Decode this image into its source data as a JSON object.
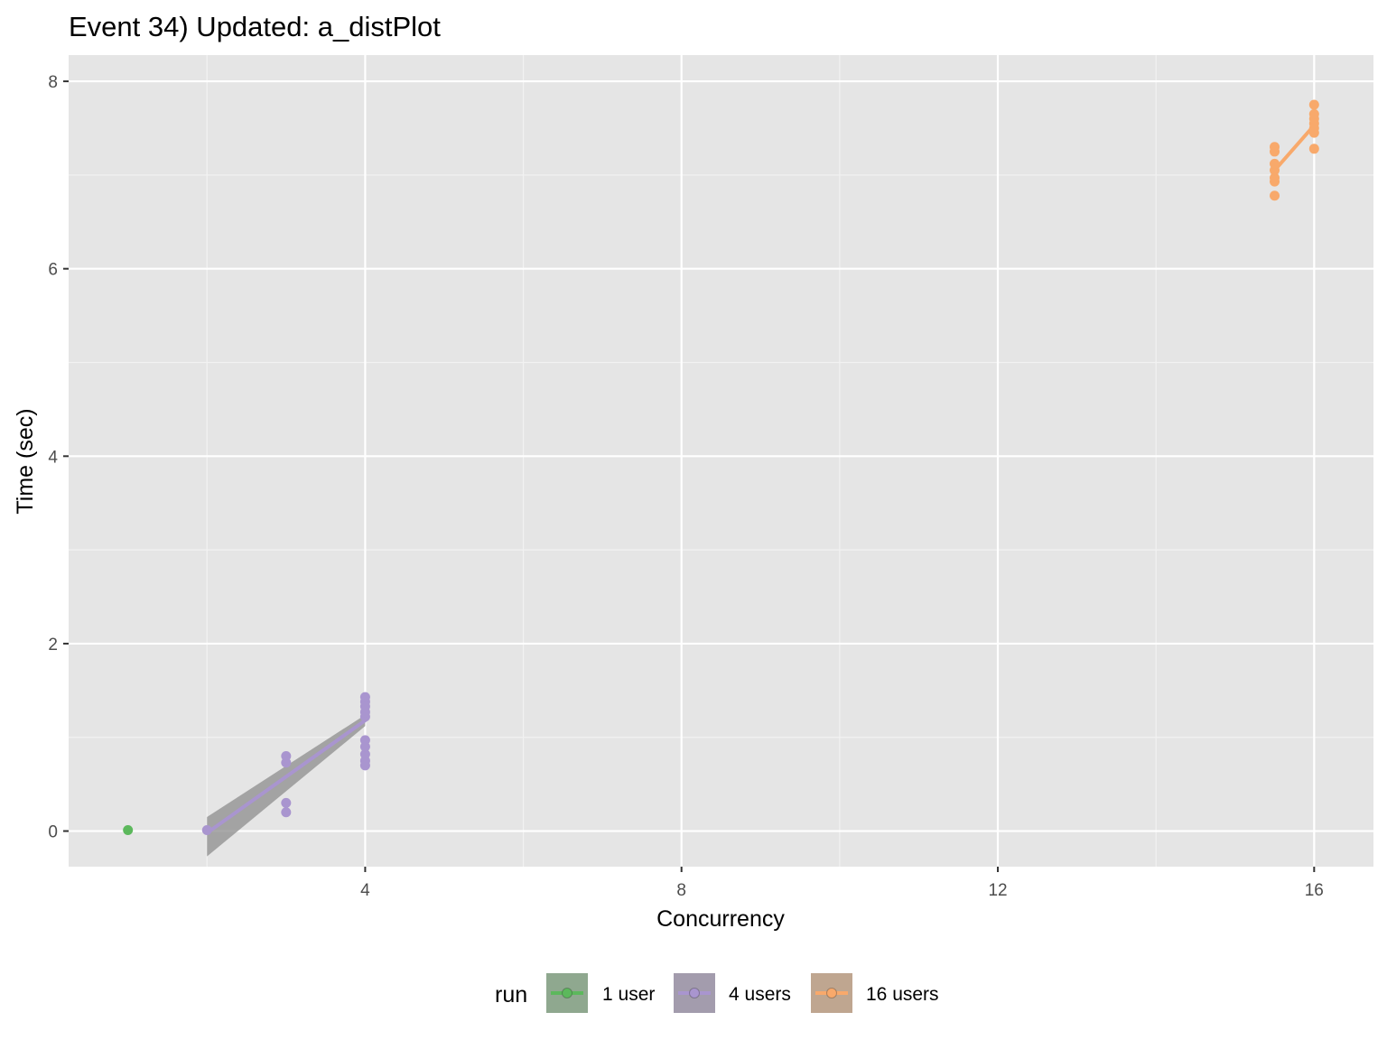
{
  "chart_data": {
    "type": "scatter",
    "title": "Event 34) Updated: a_distPlot",
    "xlabel": "Concurrency",
    "ylabel": "Time (sec)",
    "xlim": [
      0.25,
      16.75
    ],
    "ylim": [
      -0.38,
      8.28
    ],
    "x_ticks": [
      4,
      8,
      12,
      16
    ],
    "x_tick_labels": [
      "4",
      "8",
      "12",
      "16"
    ],
    "x_minor": [
      2,
      6,
      10,
      14
    ],
    "y_ticks": [
      0,
      2,
      4,
      6,
      8
    ],
    "y_tick_labels": [
      "0",
      "2",
      "4",
      "6",
      "8"
    ],
    "y_minor": [
      1,
      3,
      5,
      7
    ],
    "grid": true,
    "legend": {
      "title": "run",
      "placement": "bottom",
      "entries": [
        "1 user",
        "4 users",
        "16 users"
      ]
    },
    "series": [
      {
        "name": "1 user",
        "color": "#5cb85c",
        "points": [
          [
            1,
            0.01
          ]
        ]
      },
      {
        "name": "4 users",
        "color": "#a995cf",
        "points": [
          [
            2,
            0.01
          ],
          [
            3,
            0.2
          ],
          [
            3,
            0.3
          ],
          [
            3,
            0.73
          ],
          [
            3,
            0.8
          ],
          [
            4,
            0.7
          ],
          [
            4,
            0.75
          ],
          [
            4,
            0.82
          ],
          [
            4,
            0.9
          ],
          [
            4,
            0.97
          ],
          [
            4,
            1.22
          ],
          [
            4,
            1.27
          ],
          [
            4,
            1.33
          ],
          [
            4,
            1.38
          ],
          [
            4,
            1.43
          ]
        ],
        "trend": [
          [
            2,
            -0.02
          ],
          [
            4,
            1.18
          ]
        ],
        "band_lower": [
          -0.27,
          1.12
        ],
        "band_upper": [
          0.15,
          1.24
        ]
      },
      {
        "name": "16 users",
        "color": "#f8a96b",
        "points": [
          [
            15.5,
            6.78
          ],
          [
            15.5,
            6.93
          ],
          [
            15.5,
            6.97
          ],
          [
            15.5,
            7.05
          ],
          [
            15.5,
            7.12
          ],
          [
            15.5,
            7.25
          ],
          [
            15.5,
            7.3
          ],
          [
            16,
            7.28
          ],
          [
            16,
            7.45
          ],
          [
            16,
            7.5
          ],
          [
            16,
            7.55
          ],
          [
            16,
            7.6
          ],
          [
            16,
            7.65
          ],
          [
            16,
            7.75
          ]
        ],
        "trend": [
          [
            15.5,
            7.05
          ],
          [
            16,
            7.53
          ]
        ]
      }
    ]
  }
}
